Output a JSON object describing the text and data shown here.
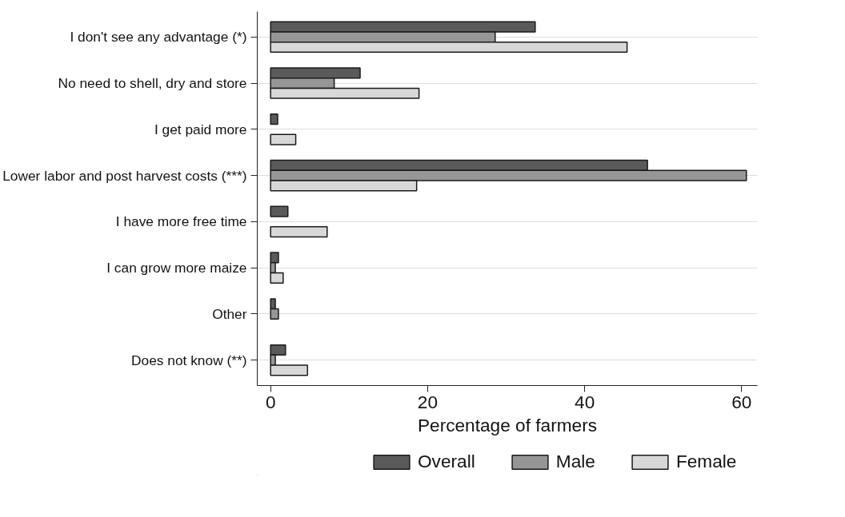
{
  "chart_data": {
    "type": "bar",
    "orientation": "horizontal",
    "xlabel": "Percentage of farmers",
    "categories": [
      "I don't see any advantage (*)",
      "No need to shell, dry and store",
      "I get paid more",
      "Lower labor and post harvest costs (***)",
      "I have more free time",
      "I can grow more maize",
      "Other",
      "Does not know (**)"
    ],
    "series": [
      {
        "name": "Overall",
        "color": "#5a5a5a",
        "values": [
          33.7,
          11.4,
          0.9,
          48.0,
          2.2,
          1.0,
          0.6,
          1.9
        ]
      },
      {
        "name": "Male",
        "color": "#969696",
        "values": [
          28.6,
          8.1,
          null,
          60.6,
          null,
          0.6,
          1.0,
          0.6
        ]
      },
      {
        "name": "Female",
        "color": "#d8d8d8",
        "values": [
          45.4,
          18.9,
          3.2,
          18.6,
          7.2,
          1.6,
          null,
          4.7
        ]
      }
    ],
    "xlim": [
      -1.7,
      62
    ],
    "xticks": [
      0,
      20,
      40,
      60
    ],
    "grid": "y",
    "legend": "bottom"
  }
}
